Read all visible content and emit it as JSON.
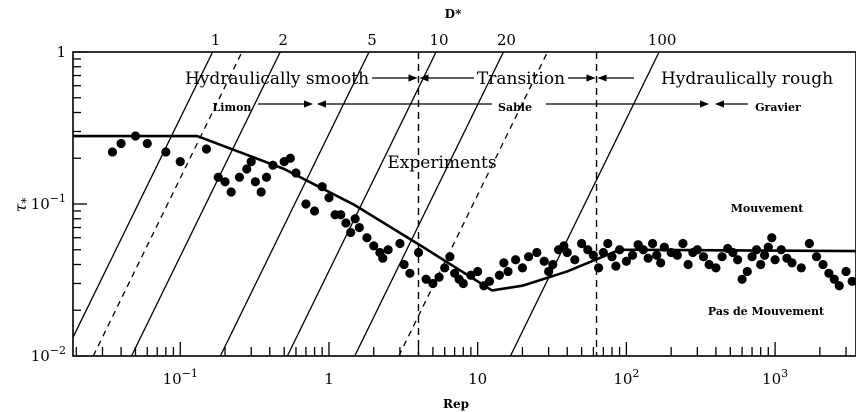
{
  "chart_data": {
    "type": "scatter",
    "title": "",
    "top_axis_title": "D*",
    "xlabel": "Rep",
    "ylabel_prefix": "τ",
    "ylabel_subscript": "*",
    "x_scale": "log",
    "y_scale": "log",
    "xlim": [
      0.019,
      3500
    ],
    "ylim": [
      0.01,
      1
    ],
    "x_tick_labels": [
      {
        "base": "10",
        "exp": "−1",
        "value": 0.1
      },
      {
        "base": "1",
        "exp": "",
        "value": 1
      },
      {
        "base": "10",
        "exp": "",
        "value": 10
      },
      {
        "base": "10",
        "exp": "2",
        "value": 100
      },
      {
        "base": "10",
        "exp": "3",
        "value": 1000
      }
    ],
    "y_tick_labels": [
      {
        "base": "1",
        "exp": "",
        "value": 1
      },
      {
        "base": "10",
        "exp": "−1",
        "value": 0.1
      },
      {
        "base": "10",
        "exp": "−2",
        "value": 0.01
      }
    ],
    "d_star_lines": [
      {
        "label": "1",
        "rep": 0.165,
        "dashed": false
      },
      {
        "label": "",
        "rep": 0.26,
        "dashed": true
      },
      {
        "label": "2",
        "rep": 0.47,
        "dashed": false
      },
      {
        "label": "5",
        "rep": 1.86,
        "dashed": false
      },
      {
        "label": "10",
        "rep": 5.25,
        "dashed": false
      },
      {
        "label": "20",
        "rep": 14.9,
        "dashed": false
      },
      {
        "label": "",
        "rep": 29.5,
        "dashed": true
      },
      {
        "label": "100",
        "rep": 166,
        "dashed": false
      }
    ],
    "regime_boundaries": [
      4.0,
      63
    ],
    "regime_labels": {
      "smooth": "Hydraulically smooth",
      "transition": "Transition",
      "rough": "Hydraulically rough"
    },
    "sediment_labels": {
      "limon": "Limon",
      "sable": "Sable",
      "gravier": "Gravier"
    },
    "annotations": {
      "experiments": "Experiments",
      "mouvement": "Mouvement",
      "pas_de_mouvement": "Pas de Mouvement"
    },
    "shields_curve": {
      "x": [
        0.019,
        0.13,
        0.5,
        1.5,
        4.3,
        12.5,
        20,
        40,
        90,
        3500
      ],
      "y": [
        0.28,
        0.28,
        0.17,
        0.098,
        0.052,
        0.027,
        0.029,
        0.036,
        0.05,
        0.049
      ]
    },
    "experiments": {
      "x": [
        0.035,
        0.04,
        0.05,
        0.06,
        0.08,
        0.1,
        0.15,
        0.18,
        0.2,
        0.22,
        0.25,
        0.28,
        0.3,
        0.32,
        0.35,
        0.38,
        0.42,
        0.5,
        0.55,
        0.6,
        0.7,
        0.8,
        0.9,
        1.0,
        1.1,
        1.2,
        1.3,
        1.4,
        1.5,
        1.6,
        1.8,
        2.0,
        2.2,
        2.3,
        2.5,
        3.0,
        3.2,
        3.5,
        4.0,
        4.5,
        5.0,
        5.5,
        6.0,
        6.5,
        7.0,
        7.5,
        8.0,
        9.0,
        10.0,
        11.0,
        12.0,
        14.0,
        15.0,
        16.0,
        18.0,
        20.0,
        22.0,
        25.0,
        28.0,
        30.0,
        32.0,
        35.0,
        38.0,
        40.0,
        45.0,
        50.0,
        55.0,
        60.0,
        65.0,
        70.0,
        75.0,
        80.0,
        85.0,
        90.0,
        100.0,
        110.0,
        120.0,
        130.0,
        140.0,
        150.0,
        160.0,
        170.0,
        180.0,
        200.0,
        220.0,
        240.0,
        260.0,
        280.0,
        300.0,
        330.0,
        360.0,
        400.0,
        440.0,
        480.0,
        520.0,
        560.0,
        600.0,
        650.0,
        700.0,
        750.0,
        800.0,
        850.0,
        900.0,
        950.0,
        1000.0,
        1100.0,
        1200.0,
        1300.0,
        1500.0,
        1700.0,
        1900.0,
        2100.0,
        2300.0,
        2500.0,
        2700.0,
        3000.0,
        3300.0
      ],
      "y": [
        0.22,
        0.25,
        0.28,
        0.25,
        0.22,
        0.19,
        0.23,
        0.15,
        0.14,
        0.12,
        0.15,
        0.17,
        0.19,
        0.14,
        0.12,
        0.15,
        0.18,
        0.19,
        0.2,
        0.16,
        0.1,
        0.09,
        0.13,
        0.11,
        0.085,
        0.085,
        0.075,
        0.065,
        0.08,
        0.07,
        0.06,
        0.053,
        0.048,
        0.044,
        0.05,
        0.055,
        0.04,
        0.035,
        0.048,
        0.032,
        0.03,
        0.033,
        0.038,
        0.045,
        0.035,
        0.032,
        0.03,
        0.034,
        0.036,
        0.029,
        0.031,
        0.034,
        0.041,
        0.036,
        0.043,
        0.038,
        0.045,
        0.048,
        0.042,
        0.036,
        0.04,
        0.05,
        0.053,
        0.048,
        0.043,
        0.055,
        0.05,
        0.046,
        0.038,
        0.048,
        0.055,
        0.045,
        0.039,
        0.05,
        0.042,
        0.046,
        0.054,
        0.05,
        0.044,
        0.055,
        0.046,
        0.041,
        0.052,
        0.048,
        0.046,
        0.055,
        0.04,
        0.048,
        0.05,
        0.045,
        0.04,
        0.038,
        0.045,
        0.051,
        0.048,
        0.043,
        0.032,
        0.036,
        0.045,
        0.05,
        0.04,
        0.046,
        0.052,
        0.06,
        0.043,
        0.05,
        0.044,
        0.041,
        0.038,
        0.055,
        0.045,
        0.04,
        0.035,
        0.032,
        0.029,
        0.036,
        0.031
      ]
    }
  }
}
